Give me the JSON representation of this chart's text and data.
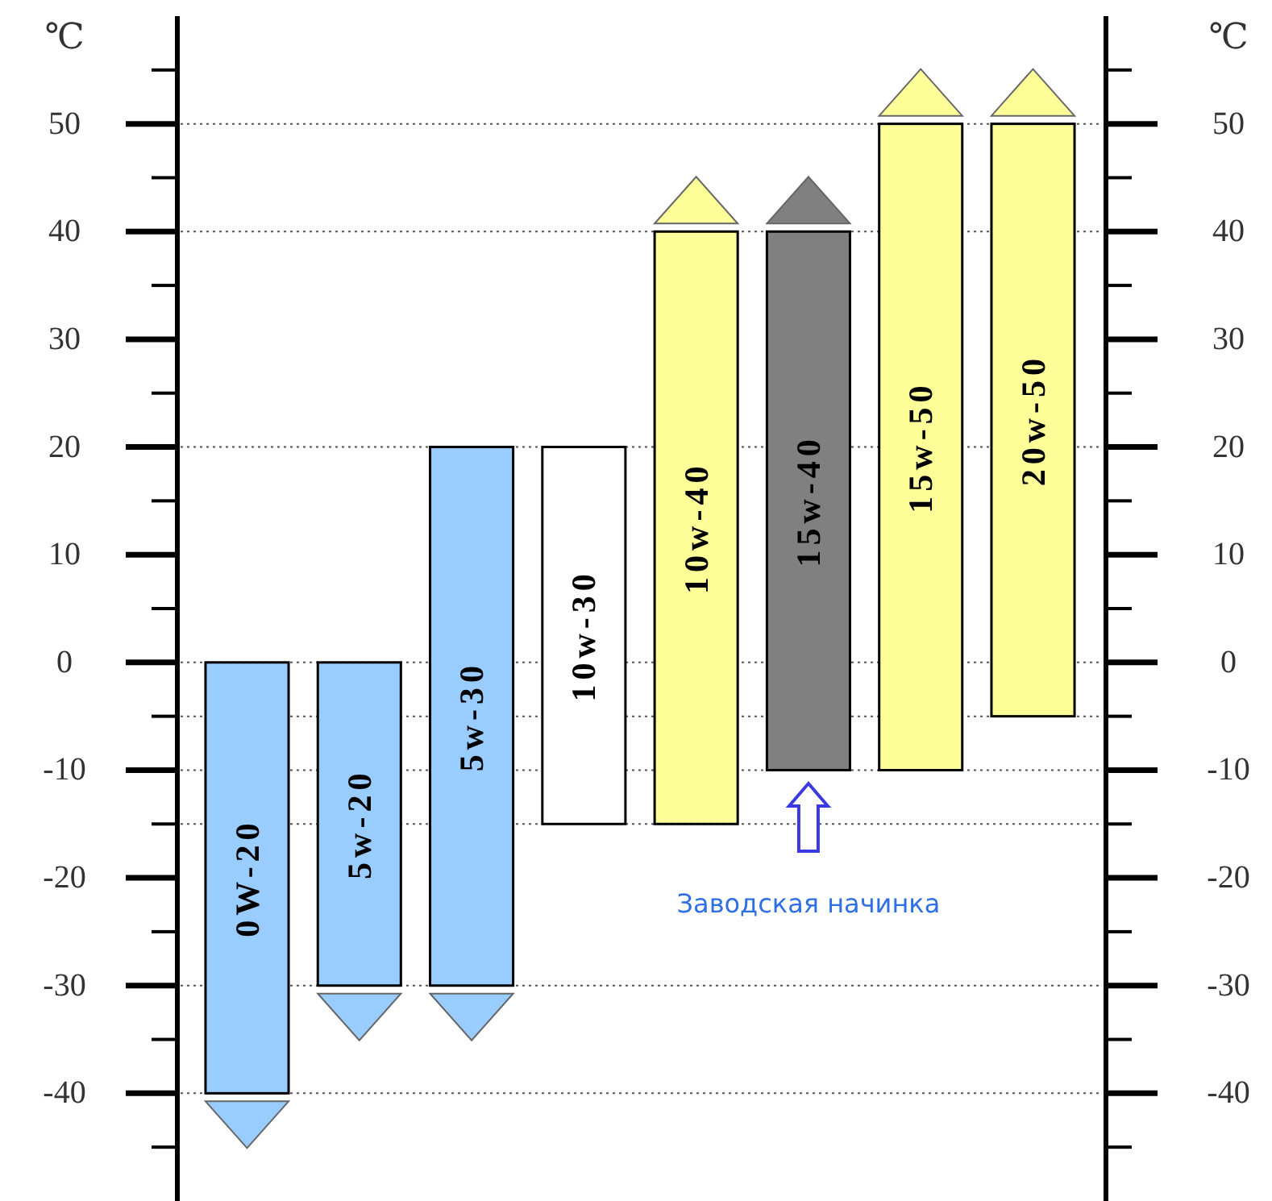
{
  "chart_data": {
    "type": "bar",
    "categories": [
      "0W-20",
      "5w-20",
      "5w-30",
      "10w-30",
      "10w-40",
      "15w-40",
      "15w-50",
      "20w-50"
    ],
    "base": [
      -40,
      -30,
      -30,
      -15,
      -15,
      -10,
      -10,
      -5
    ],
    "values": [
      40,
      30,
      50,
      35,
      55,
      50,
      60,
      55
    ],
    "colors": [
      "#99ccff",
      "#99ccff",
      "#99ccff",
      "#ffffff",
      "#ffff99",
      "#808080",
      "#ffff99",
      "#ffff99"
    ],
    "ylabel": "℃",
    "y2label": "℃",
    "ylim": [
      -50,
      60
    ],
    "y2lim": [
      -50,
      60
    ],
    "yticks": [
      {
        "value": -45,
        "label": null
      },
      -40,
      {
        "value": -35,
        "label": null
      },
      -30,
      {
        "value": -25,
        "label": null
      },
      -20,
      {
        "value": -15,
        "label": null
      },
      -10,
      {
        "value": -5,
        "label": null
      },
      0,
      {
        "value": 5,
        "label": null
      },
      10,
      {
        "value": 15,
        "label": null
      },
      20,
      {
        "value": 25,
        "label": null
      },
      30,
      {
        "value": 35,
        "label": null
      },
      40,
      {
        "value": 45,
        "label": null
      },
      50,
      {
        "value": 55,
        "label": null
      }
    ],
    "y2ticks": [
      {
        "value": -45,
        "label": null
      },
      -40,
      {
        "value": -35,
        "label": null
      },
      -30,
      {
        "value": -25,
        "label": null
      },
      -20,
      {
        "value": -15,
        "label": null
      },
      -10,
      {
        "value": -5,
        "label": null
      },
      0,
      {
        "value": 5,
        "label": null
      },
      10,
      {
        "value": 15,
        "label": null
      },
      20,
      {
        "value": 25,
        "label": null
      },
      30,
      {
        "value": 35,
        "label": null
      },
      40,
      {
        "value": 45,
        "label": null
      },
      50,
      {
        "value": 55,
        "label": null
      }
    ],
    "ref_lines": [
      {
        "axis": "y",
        "value": 50,
        "line_style": "dotted",
        "color": "#555555"
      },
      {
        "axis": "y",
        "value": 40,
        "line_style": "dotted",
        "color": "#555555"
      },
      {
        "axis": "y",
        "value": 20,
        "line_style": "dotted",
        "color": "#555555"
      },
      {
        "axis": "y",
        "value": 0,
        "line_style": "dotted",
        "color": "#555555"
      },
      {
        "axis": "y",
        "value": -5,
        "line_style": "dotted",
        "color": "#555555"
      },
      {
        "axis": "y",
        "value": -10,
        "line_style": "dotted",
        "color": "#555555"
      },
      {
        "axis": "y",
        "value": -15,
        "line_style": "dotted",
        "color": "#555555"
      },
      {
        "axis": "y",
        "value": -30,
        "line_style": "dotted",
        "color": "#555555"
      },
      {
        "axis": "y",
        "value": -40,
        "line_style": "dotted",
        "color": "#555555"
      }
    ],
    "annotations": [
      "Заводская начинка"
    ]
  }
}
